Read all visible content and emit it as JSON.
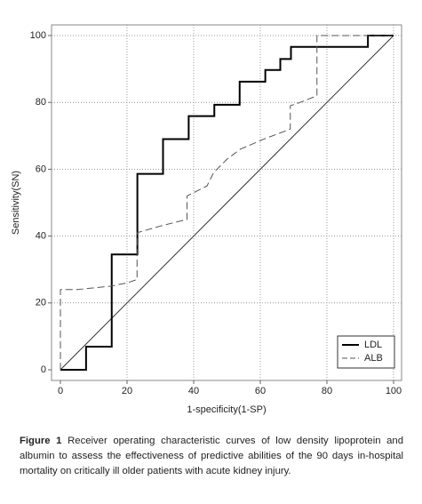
{
  "chart_data": {
    "type": "line",
    "x_label": "1-specificity(1-SP)",
    "y_label": "Sensitivity(SN)",
    "xlim": [
      0,
      100
    ],
    "ylim": [
      0,
      100
    ],
    "xticks": [
      0,
      20,
      40,
      60,
      80,
      100
    ],
    "yticks": [
      0,
      20,
      40,
      60,
      80,
      100
    ],
    "grid": true,
    "legend": "lower right",
    "series": [
      {
        "name": "LDL",
        "color": "#000000",
        "style": "solid",
        "x": [
          0,
          7.7,
          7.7,
          15.4,
          15.4,
          23.1,
          23.1,
          30.8,
          30.8,
          38.5,
          38.5,
          46.2,
          46.2,
          53.8,
          53.8,
          61.5,
          61.5,
          66,
          66,
          69.2,
          69.2,
          92.3,
          92.3,
          100
        ],
        "values": [
          0,
          0,
          6.9,
          6.9,
          34.5,
          34.5,
          58.6,
          58.6,
          69,
          69,
          75.9,
          75.9,
          79.3,
          79.3,
          86.2,
          86.2,
          89.7,
          89.7,
          93,
          93,
          96.6,
          96.6,
          100,
          100
        ]
      },
      {
        "name": "ALB",
        "color": "#555555",
        "style": "dashed",
        "x": [
          0,
          0,
          5,
          15,
          20,
          23,
          23,
          30,
          38,
          38,
          44,
          46,
          50,
          54,
          61,
          69,
          69,
          72,
          77,
          77,
          100
        ],
        "values": [
          0,
          24,
          24,
          25,
          26,
          27,
          41,
          43,
          45,
          52,
          55,
          59,
          63,
          66,
          69,
          72,
          79,
          80,
          82,
          100,
          100
        ]
      }
    ],
    "caption_label": "Figure 1",
    "caption_text": "Receiver operating characteristic curves of low density lipoprotein and albumin to assess the effectiveness of predictive abilities of the 90 days in-hospital mortality on critically ill older patients with acute kidney injury."
  }
}
